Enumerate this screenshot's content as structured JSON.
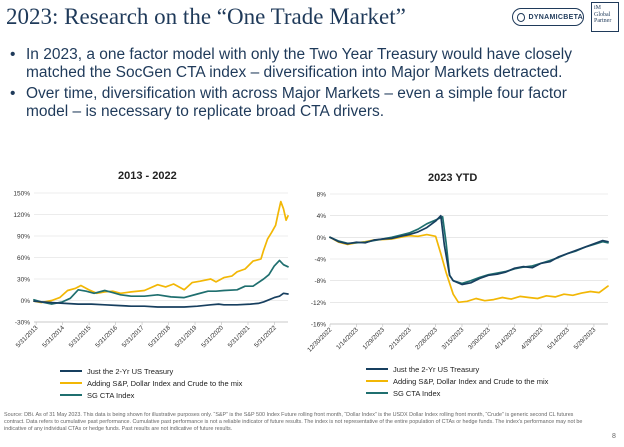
{
  "header": {
    "title": "2023:  Research on the “One Trade Market”",
    "logo_dynamicbeta": "DYNAMICBETA",
    "logo_im_line1": "iM",
    "logo_im_line2": "Global",
    "logo_im_line3": "Partner"
  },
  "bullets": [
    "In 2023, a one factor model with only the Two Year Treasury would have closely matched the SocGen CTA index – diversification into Major Markets detracted.",
    "Over time, diversification with across Major Markets – even a simple four factor model – is necessary to replicate broad CTA drivers."
  ],
  "colors": {
    "treasury": "#173f5f",
    "adding": "#f2b705",
    "sgcta": "#1f6f6f"
  },
  "legend": {
    "treasury": "Just the 2-Yr US Treasury",
    "adding": "Adding S&P, Dollar Index and Crude to the mix",
    "sgcta": "SG CTA Index"
  },
  "source": "Source: DBi. As of 31 May 2023. This data is being shown for illustrative purposes only. “S&P” is the S&P 500 Index Future rolling front month, “Dollar Index” is the USDX Dollar Index rolling front month, “Crude” is generic second CL futures contract. Data refers to cumulative past performance. Cumulative past performance is not a reliable indicator of future results. The index is not representative of the entire population of CTAs or hedge funds. The index's performance may not be indicative of any individual CTAs or hedge funds. Past results are not indicative of future results.",
  "page_number": "8",
  "chart_data": [
    {
      "type": "line",
      "title": "2013 - 2022",
      "ylim": [
        -30,
        150
      ],
      "yticks": [
        "150%",
        "120%",
        "90%",
        "60%",
        "30%",
        "0%",
        "-30%"
      ],
      "ytick_values": [
        150,
        120,
        90,
        60,
        30,
        0,
        -30
      ],
      "x_range": [
        2013.33,
        2022.92
      ],
      "xtick_labels": [
        "5/31/2013",
        "5/31/2014",
        "5/31/2015",
        "5/31/2016",
        "5/31/2017",
        "5/31/2018",
        "5/31/2019",
        "5/31/2020",
        "5/31/2021",
        "5/31/2022"
      ],
      "xtick_values": [
        2013.41,
        2014.41,
        2015.41,
        2016.41,
        2017.41,
        2018.41,
        2019.41,
        2020.41,
        2021.41,
        2022.41
      ],
      "series": [
        {
          "name": "Just the 2-Yr US Treasury",
          "key": "treasury",
          "x": [
            2013.33,
            2013.6,
            2014.0,
            2014.5,
            2015.0,
            2015.5,
            2016.0,
            2016.5,
            2017.0,
            2017.5,
            2018.0,
            2018.5,
            2019.0,
            2019.5,
            2020.0,
            2020.3,
            2020.5,
            2021.0,
            2021.5,
            2021.8,
            2022.0,
            2022.2,
            2022.4,
            2022.6,
            2022.75,
            2022.92
          ],
          "values": [
            -1,
            -2,
            -3,
            -4,
            -5,
            -5,
            -6,
            -7,
            -8,
            -8,
            -9,
            -9,
            -9,
            -8,
            -6,
            -5,
            -6,
            -6,
            -5,
            -4,
            -2,
            1,
            4,
            6,
            10,
            9
          ]
        },
        {
          "name": "Adding S&P, Dollar Index and Crude to the mix",
          "key": "adding",
          "x": [
            2013.33,
            2013.6,
            2014.0,
            2014.3,
            2014.6,
            2014.9,
            2015.1,
            2015.4,
            2015.7,
            2016.0,
            2016.3,
            2016.6,
            2017.0,
            2017.5,
            2018.0,
            2018.3,
            2018.6,
            2019.0,
            2019.3,
            2019.6,
            2020.0,
            2020.2,
            2020.5,
            2020.8,
            2021.0,
            2021.3,
            2021.6,
            2021.9,
            2022.0,
            2022.15,
            2022.3,
            2022.45,
            2022.55,
            2022.65,
            2022.75,
            2022.85,
            2022.92
          ],
          "values": [
            -1,
            -3,
            0,
            4,
            14,
            17,
            21,
            15,
            10,
            12,
            13,
            10,
            12,
            14,
            22,
            19,
            23,
            15,
            25,
            27,
            30,
            26,
            32,
            34,
            40,
            44,
            55,
            58,
            70,
            86,
            95,
            105,
            122,
            138,
            128,
            112,
            118
          ]
        },
        {
          "name": "SG CTA Index",
          "key": "sgcta",
          "x": [
            2013.33,
            2013.6,
            2014.0,
            2014.4,
            2014.7,
            2015.0,
            2015.3,
            2015.6,
            2016.0,
            2016.3,
            2016.6,
            2017.0,
            2017.5,
            2018.0,
            2018.5,
            2019.0,
            2019.5,
            2019.9,
            2020.2,
            2020.5,
            2021.0,
            2021.3,
            2021.6,
            2022.0,
            2022.2,
            2022.4,
            2022.6,
            2022.75,
            2022.92
          ],
          "values": [
            1,
            -2,
            -5,
            -2,
            3,
            15,
            13,
            10,
            14,
            11,
            8,
            6,
            6,
            8,
            5,
            4,
            9,
            13,
            13,
            14,
            15,
            20,
            20,
            30,
            36,
            48,
            56,
            50,
            47
          ]
        }
      ]
    },
    {
      "type": "line",
      "title": "2023 YTD",
      "ylim": [
        -16,
        8
      ],
      "yticks": [
        "8%",
        "4%",
        "0%",
        "-4%",
        "-8%",
        "-12%",
        "-16%"
      ],
      "ytick_values": [
        8,
        4,
        0,
        -4,
        -8,
        -12,
        -16
      ],
      "x_range": [
        0,
        158
      ],
      "xtick_labels": [
        "12/30/2022",
        "1/14/2023",
        "1/29/2023",
        "2/13/2023",
        "2/28/2023",
        "3/15/2023",
        "3/30/2023",
        "4/14/2023",
        "4/29/2023",
        "5/14/2023",
        "5/29/2023"
      ],
      "xtick_values": [
        0,
        15,
        30,
        45,
        60,
        75,
        90,
        105,
        120,
        135,
        150
      ],
      "series": [
        {
          "name": "Just the 2-Yr US Treasury",
          "key": "treasury",
          "x": [
            0,
            5,
            10,
            15,
            20,
            25,
            30,
            35,
            40,
            45,
            50,
            55,
            60,
            63,
            65,
            68,
            70,
            75,
            80,
            85,
            90,
            95,
            100,
            105,
            110,
            115,
            120,
            125,
            130,
            135,
            140,
            145,
            150,
            155,
            158
          ],
          "values": [
            0,
            -0.8,
            -1.2,
            -0.9,
            -1.0,
            -0.5,
            -0.3,
            -0.2,
            0.2,
            0.5,
            1.0,
            1.8,
            3.0,
            4.0,
            -1.5,
            -7.0,
            -8.0,
            -8.7,
            -8.4,
            -7.6,
            -7.0,
            -6.8,
            -6.4,
            -5.7,
            -5.4,
            -5.6,
            -4.8,
            -4.5,
            -3.6,
            -3.0,
            -2.4,
            -1.8,
            -1.2,
            -0.6,
            -0.8
          ]
        },
        {
          "name": "Adding S&P, Dollar Index and Crude to the mix",
          "key": "adding",
          "x": [
            0,
            5,
            10,
            15,
            20,
            25,
            30,
            35,
            40,
            45,
            50,
            55,
            60,
            63,
            66,
            70,
            73,
            78,
            83,
            88,
            93,
            98,
            103,
            108,
            113,
            118,
            123,
            128,
            133,
            138,
            143,
            148,
            153,
            158
          ],
          "values": [
            0,
            -0.9,
            -1.3,
            -1.0,
            -0.8,
            -0.5,
            -0.4,
            -0.3,
            0,
            0.3,
            0.2,
            0.5,
            0.2,
            -3.0,
            -6.5,
            -10.5,
            -12.0,
            -11.8,
            -11.3,
            -11.7,
            -11.5,
            -11.1,
            -11.4,
            -10.9,
            -11.1,
            -11.3,
            -10.8,
            -11.0,
            -10.5,
            -10.7,
            -10.3,
            -10.0,
            -10.2,
            -9.0
          ]
        },
        {
          "name": "SG CTA Index",
          "key": "sgcta",
          "x": [
            0,
            5,
            10,
            15,
            20,
            25,
            30,
            35,
            40,
            45,
            50,
            55,
            60,
            64,
            66,
            68,
            70,
            75,
            80,
            85,
            90,
            95,
            100,
            105,
            110,
            115,
            120,
            125,
            130,
            135,
            140,
            145,
            150,
            155,
            158
          ],
          "values": [
            0,
            -0.7,
            -1.1,
            -1.0,
            -0.9,
            -0.6,
            -0.3,
            0,
            0.4,
            0.8,
            1.5,
            2.5,
            3.2,
            3.8,
            -1.0,
            -7.0,
            -8.0,
            -8.5,
            -8.0,
            -7.4,
            -6.9,
            -6.6,
            -6.3,
            -5.8,
            -5.5,
            -5.3,
            -4.8,
            -4.3,
            -3.7,
            -3.0,
            -2.5,
            -1.8,
            -1.3,
            -0.8,
            -1.0
          ]
        }
      ]
    }
  ]
}
